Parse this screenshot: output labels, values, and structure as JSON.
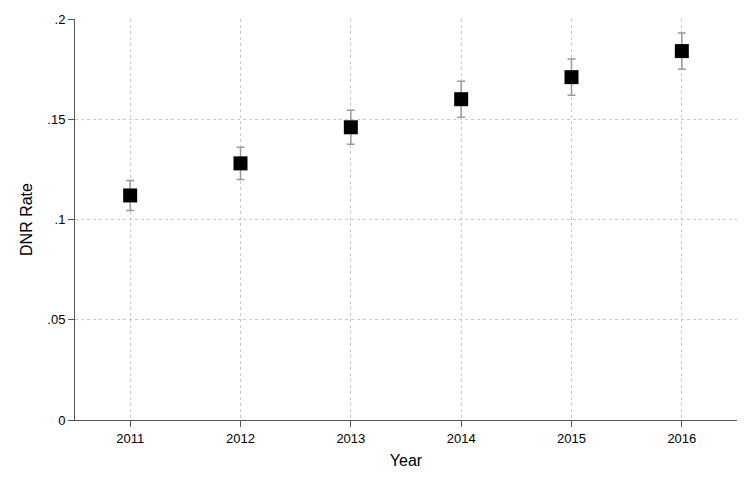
{
  "chart_data": {
    "type": "scatter",
    "xlabel": "Year",
    "ylabel": "DNR Rate",
    "x": [
      2011,
      2012,
      2013,
      2014,
      2015,
      2016
    ],
    "values": [
      0.112,
      0.128,
      0.146,
      0.16,
      0.171,
      0.184
    ],
    "errors": [
      0.0075,
      0.008,
      0.0085,
      0.009,
      0.009,
      0.009
    ],
    "color": "#000000",
    "marker": "square",
    "xlim": [
      2010.5,
      2016.5
    ],
    "xticks": [
      2011,
      2012,
      2013,
      2014,
      2015,
      2016
    ],
    "ylim": [
      0,
      0.2
    ],
    "yticks": [
      0,
      {
        "value": 0.05,
        "label": ".05"
      },
      {
        "value": 0.1,
        "label": ".1"
      },
      {
        "value": 0.15,
        "label": ".15"
      },
      {
        "value": 0.2,
        "label": ".2"
      }
    ],
    "grid": true
  }
}
